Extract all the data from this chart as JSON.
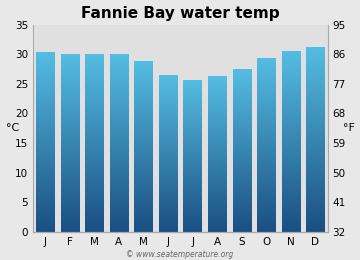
{
  "title": "Fannie Bay water temp",
  "months": [
    "J",
    "F",
    "M",
    "A",
    "M",
    "J",
    "J",
    "A",
    "S",
    "O",
    "N",
    "D"
  ],
  "values": [
    30.3,
    30.0,
    30.0,
    30.0,
    28.8,
    26.5,
    25.5,
    26.2,
    27.5,
    29.3,
    30.5,
    31.2
  ],
  "ylabel_left": "°C",
  "ylabel_right": "°F",
  "ylim_c": [
    0,
    35
  ],
  "yticks_c": [
    0,
    5,
    10,
    15,
    20,
    25,
    30,
    35
  ],
  "yticks_f": [
    32,
    41,
    50,
    59,
    68,
    77,
    86,
    95
  ],
  "bar_color_top": "#55bde2",
  "bar_color_bottom": "#1a4f82",
  "background_color": "#e8e8e8",
  "plot_bg_color": "#e0e0e0",
  "watermark": "© www.seatemperature.org",
  "title_fontsize": 11,
  "axis_fontsize": 8,
  "tick_fontsize": 7.5,
  "bar_width": 0.75
}
